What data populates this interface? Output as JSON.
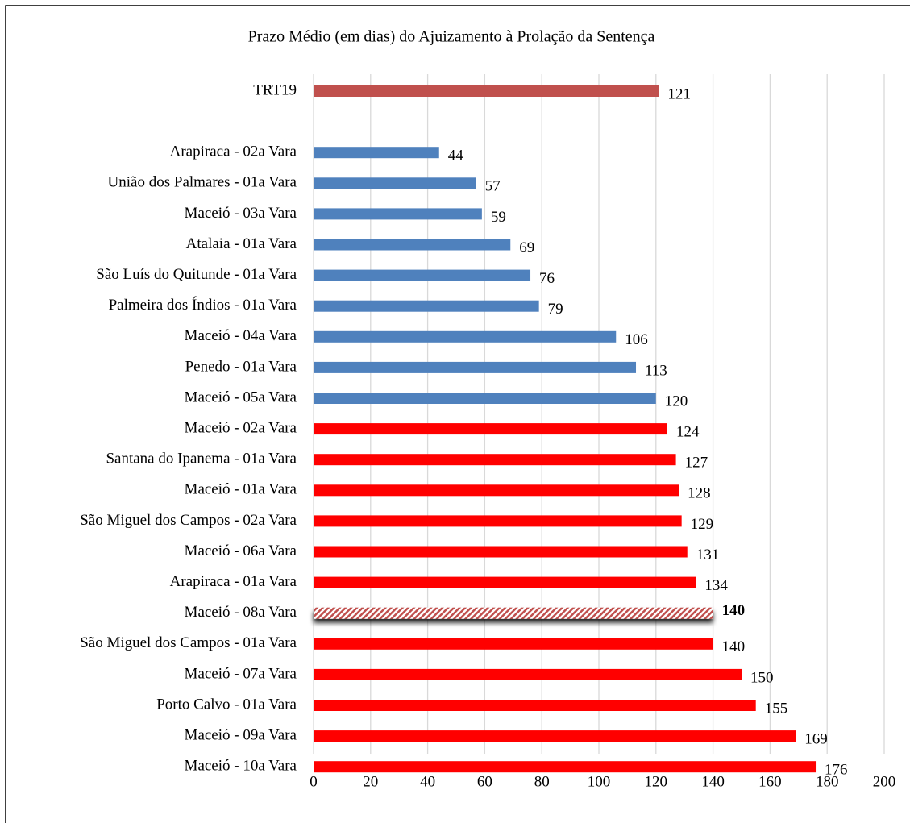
{
  "chart_data": {
    "type": "barh",
    "title": "Prazo Médio (em dias) do Ajuizamento à Prolação da Sentença",
    "categories": [
      "TRT19",
      null,
      "Arapiraca - 02a Vara",
      "União dos Palmares - 01a Vara",
      "Maceió - 03a Vara",
      "Atalaia - 01a Vara",
      "São Luís do Quitunde - 01a Vara",
      "Palmeira dos Índios - 01a Vara",
      "Maceió - 04a Vara",
      "Penedo - 01a Vara",
      "Maceió - 05a Vara",
      "Maceió - 02a Vara",
      "Santana do Ipanema - 01a Vara",
      "Maceió - 01a Vara",
      "São Miguel dos Campos - 02a Vara",
      "Maceió - 06a Vara",
      "Arapiraca - 01a Vara",
      "Maceió - 08a Vara",
      "São Miguel dos Campos - 01a Vara",
      "Maceió - 07a Vara",
      "Porto Calvo - 01a Vara",
      "Maceió - 09a Vara",
      "Maceió - 10a Vara"
    ],
    "values": [
      121,
      null,
      44,
      57,
      59,
      69,
      76,
      79,
      106,
      113,
      120,
      124,
      127,
      128,
      129,
      131,
      134,
      140,
      140,
      150,
      155,
      169,
      176
    ],
    "colors": [
      "#c0504d",
      null,
      "#4f81bd",
      "#4f81bd",
      "#4f81bd",
      "#4f81bd",
      "#4f81bd",
      "#4f81bd",
      "#4f81bd",
      "#4f81bd",
      "#4f81bd",
      "#ff0000",
      "#ff0000",
      "#ff0000",
      "#ff0000",
      "#ff0000",
      "#ff0000",
      "#ff0000",
      "#ff0000",
      "#ff0000",
      "#ff0000",
      "#ff0000",
      "#ff0000"
    ],
    "highlight": "Maceió - 08a Vara",
    "xlim": [
      0,
      200
    ],
    "xticks": [
      0,
      20,
      40,
      60,
      80,
      100,
      120,
      140,
      160,
      180,
      200
    ],
    "grid": true
  }
}
